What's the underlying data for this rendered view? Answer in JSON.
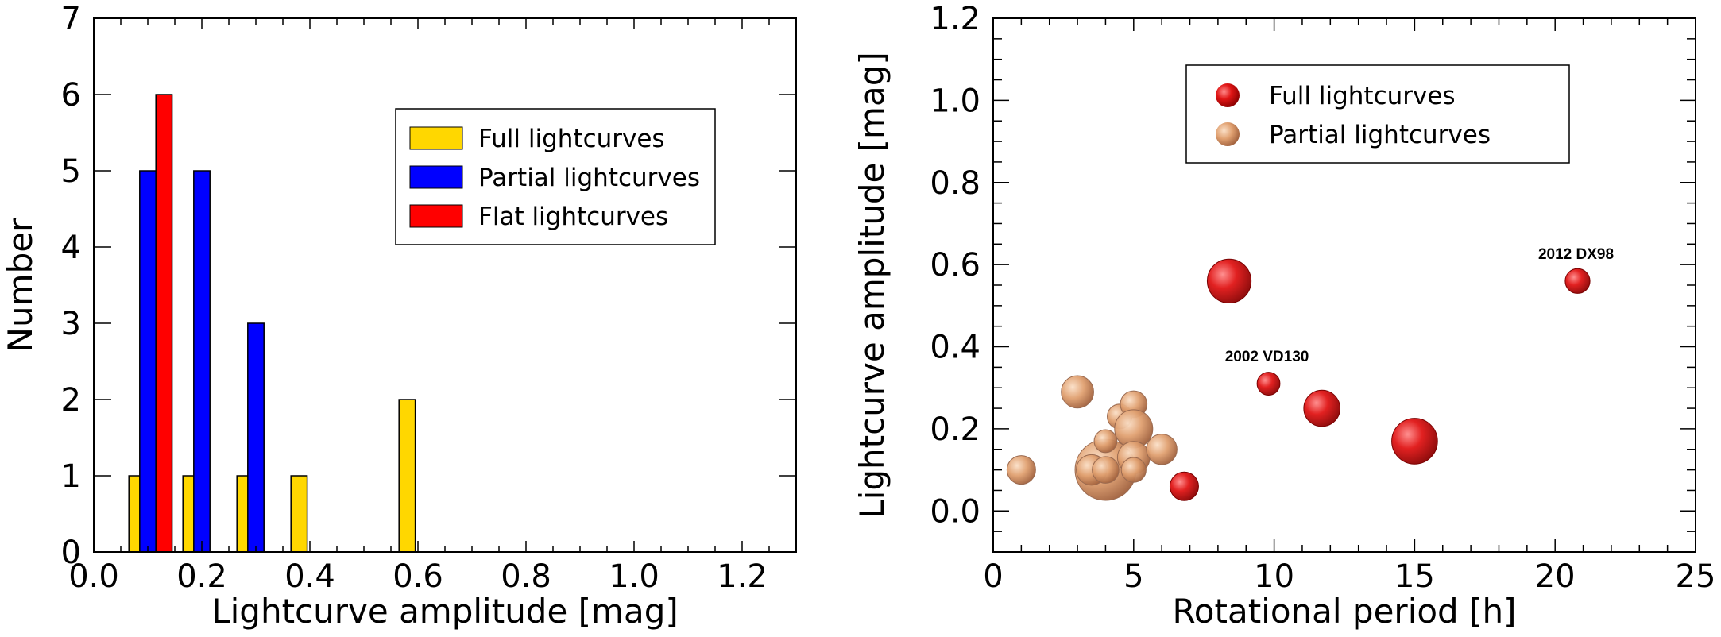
{
  "chart_data": [
    {
      "type": "bar",
      "xlabel": "Lightcurve amplitude [mag]",
      "ylabel": "Number",
      "xlim": [
        0.0,
        1.3
      ],
      "ylim": [
        0,
        7
      ],
      "x_ticks": [
        "0.0",
        "0.2",
        "0.4",
        "0.6",
        "0.8",
        "1.0",
        "1.2"
      ],
      "y_ticks": [
        "0",
        "1",
        "2",
        "3",
        "4",
        "5",
        "6",
        "7"
      ],
      "legend_position": "top-right",
      "series": [
        {
          "name": "Full lightcurves",
          "color": "#FFD700",
          "points": [
            {
              "x": 0.08,
              "y": 1
            },
            {
              "x": 0.18,
              "y": 1
            },
            {
              "x": 0.28,
              "y": 1
            },
            {
              "x": 0.38,
              "y": 1
            },
            {
              "x": 0.58,
              "y": 2
            }
          ]
        },
        {
          "name": "Partial lightcurves",
          "color": "#0000FF",
          "points": [
            {
              "x": 0.1,
              "y": 5
            },
            {
              "x": 0.2,
              "y": 5
            },
            {
              "x": 0.3,
              "y": 3
            }
          ]
        },
        {
          "name": "Flat lightcurves",
          "color": "#FF0000",
          "points": [
            {
              "x": 0.13,
              "y": 6
            }
          ]
        }
      ]
    },
    {
      "type": "scatter",
      "xlabel": "Rotational period [h]",
      "ylabel": "Lightcurve amplitude [mag]",
      "xlim": [
        0,
        25
      ],
      "ylim": [
        -0.1,
        1.2
      ],
      "x_ticks": [
        "0",
        "5",
        "10",
        "15",
        "20",
        "25"
      ],
      "y_ticks": [
        "0.0",
        "0.2",
        "0.4",
        "0.6",
        "0.8",
        "1.0",
        "1.2"
      ],
      "legend_position": "top-center",
      "series": [
        {
          "name": "Full lightcurves",
          "color": "#DD1111",
          "points": [
            {
              "x": 8.4,
              "y": 0.56,
              "size": 2.3
            },
            {
              "x": 20.8,
              "y": 0.56,
              "size": 1.3
            },
            {
              "x": 9.8,
              "y": 0.31,
              "size": 1.2
            },
            {
              "x": 11.7,
              "y": 0.25,
              "size": 1.9
            },
            {
              "x": 15.0,
              "y": 0.17,
              "size": 2.4
            },
            {
              "x": 6.8,
              "y": 0.06,
              "size": 1.5
            }
          ]
        },
        {
          "name": "Partial lightcurves",
          "color": "#E0966A",
          "points": [
            {
              "x": 1.0,
              "y": 0.1,
              "size": 1.5
            },
            {
              "x": 3.0,
              "y": 0.29,
              "size": 1.7
            },
            {
              "x": 4.0,
              "y": 0.1,
              "size": 3.2
            },
            {
              "x": 3.5,
              "y": 0.1,
              "size": 1.6
            },
            {
              "x": 4.0,
              "y": 0.17,
              "size": 1.2
            },
            {
              "x": 4.5,
              "y": 0.23,
              "size": 1.3
            },
            {
              "x": 5.0,
              "y": 0.26,
              "size": 1.4
            },
            {
              "x": 5.0,
              "y": 0.2,
              "size": 2.0
            },
            {
              "x": 5.0,
              "y": 0.13,
              "size": 1.7
            },
            {
              "x": 5.0,
              "y": 0.1,
              "size": 1.3
            },
            {
              "x": 6.0,
              "y": 0.15,
              "size": 1.6
            },
            {
              "x": 4.0,
              "y": 0.1,
              "size": 1.4
            }
          ]
        }
      ],
      "annotations": [
        {
          "text": "2002 VD130",
          "x": 9.8,
          "y": 0.31
        },
        {
          "text": "2012 DX98",
          "x": 20.8,
          "y": 0.56
        }
      ]
    }
  ]
}
